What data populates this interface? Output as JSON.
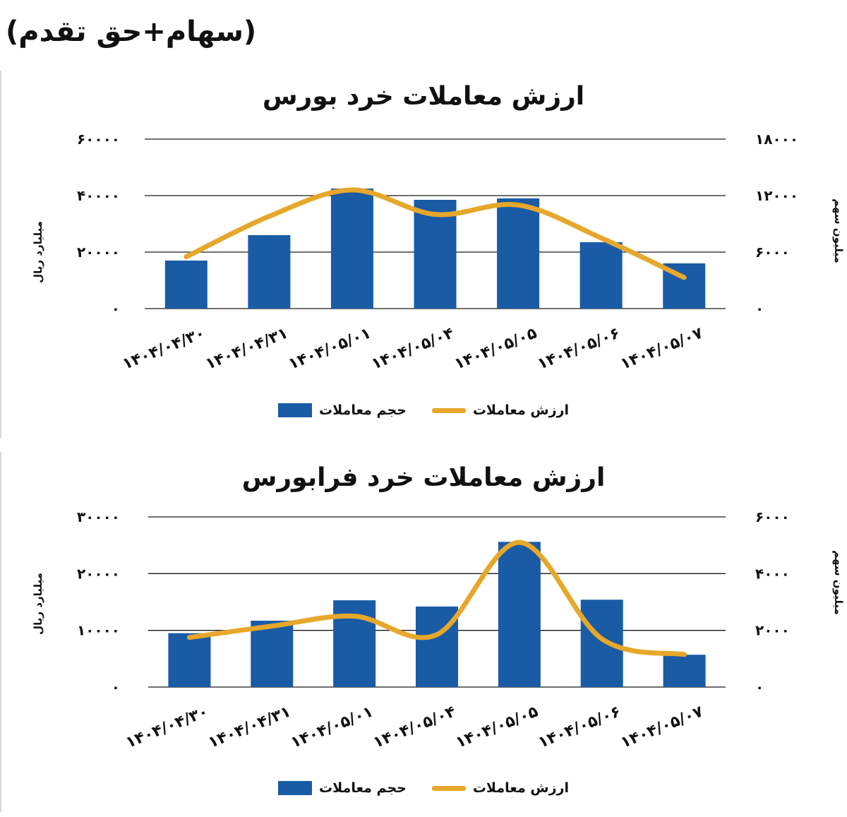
{
  "page_note": "(سهام+حق تقدم)",
  "colors": {
    "bar": "#1a5ba6",
    "line": "#e6a72b",
    "grid": "#1a1a1a"
  },
  "chart_data": [
    {
      "type": "bar",
      "title": "ارزش معاملات خرد بورس",
      "ylabel": "میلیارد ریال",
      "y2label": "میلیون سهم",
      "categories": [
        "۱۴۰۴/۰۴/۳۰",
        "۱۴۰۴/۰۴/۳۱",
        "۱۴۰۴/۰۵/۰۱",
        "۱۴۰۴/۰۵/۰۴",
        "۱۴۰۴/۰۵/۰۵",
        "۱۴۰۴/۰۵/۰۶",
        "۱۴۰۴/۰۵/۰۷"
      ],
      "ylim": [
        0,
        60000
      ],
      "y2lim": [
        0,
        18000
      ],
      "y_ticks": [
        "۰",
        "۲۰۰۰۰",
        "۴۰۰۰۰",
        "۶۰۰۰۰"
      ],
      "y2_ticks": [
        "۰",
        "۶۰۰۰",
        "۱۲۰۰۰",
        "۱۸۰۰۰"
      ],
      "series": [
        {
          "name": "حجم معاملات",
          "kind": "bar",
          "axis": "left",
          "values": [
            17000,
            26000,
            42500,
            38500,
            39000,
            23500,
            16000
          ]
        },
        {
          "name": "ارزش معاملات",
          "kind": "line",
          "axis": "right",
          "values": [
            5500,
            9800,
            12600,
            10000,
            11000,
            7500,
            3300
          ]
        }
      ],
      "legend": "bottom",
      "grid": true
    },
    {
      "type": "bar",
      "title": "ارزش معاملات خرد فرابورس",
      "ylabel": "میلیارد ریال",
      "y2label": "میلیون سهم",
      "categories": [
        "۱۴۰۴/۰۴/۳۰",
        "۱۴۰۴/۰۴/۳۱",
        "۱۴۰۴/۰۵/۰۱",
        "۱۴۰۴/۰۵/۰۴",
        "۱۴۰۴/۰۵/۰۵",
        "۱۴۰۴/۰۵/۰۶",
        "۱۴۰۴/۰۵/۰۷"
      ],
      "ylim": [
        0,
        30000
      ],
      "y2lim": [
        0,
        6000
      ],
      "y_ticks": [
        "۰",
        "۱۰۰۰۰",
        "۲۰۰۰۰",
        "۳۰۰۰۰"
      ],
      "y2_ticks": [
        "۰",
        "۲۰۰۰",
        "۴۰۰۰",
        "۶۰۰۰"
      ],
      "series": [
        {
          "name": "حجم معاملات",
          "kind": "bar",
          "axis": "left",
          "values": [
            9500,
            11700,
            15300,
            14200,
            25600,
            15400,
            5700
          ]
        },
        {
          "name": "ارزش معاملات",
          "kind": "line",
          "axis": "right",
          "values": [
            1750,
            2150,
            2500,
            1850,
            5100,
            1700,
            1150
          ]
        }
      ],
      "legend": "bottom",
      "grid": true
    }
  ]
}
